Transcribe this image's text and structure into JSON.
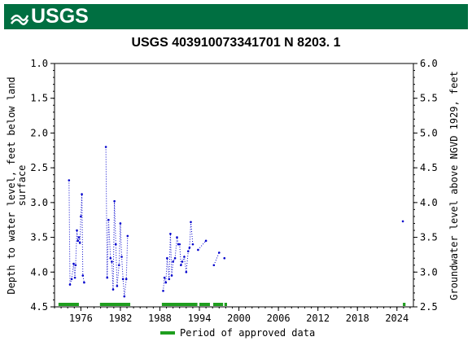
{
  "header": {
    "logo_text": "USGS"
  },
  "chart_data": {
    "type": "scatter",
    "title": "USGS 403910073341701 N  8203. 1",
    "ylabel_left_line1": "Depth to water level, feet below land",
    "ylabel_left_line2": "surface",
    "ylabel_right": "Groundwater level above NGVD 1929, feet",
    "y_left_lim": [
      1.0,
      4.5
    ],
    "y_left_inverted": true,
    "y_left_ticks": [
      "1.0",
      "1.5",
      "2.0",
      "2.5",
      "3.0",
      "3.5",
      "4.0",
      "4.5"
    ],
    "y_right_lim": [
      2.5,
      6.0
    ],
    "y_right_ticks": [
      "6.0",
      "5.5",
      "5.0",
      "4.5",
      "4.0",
      "3.5",
      "3.0",
      "2.5"
    ],
    "x_lim": [
      1972.0,
      2026.5
    ],
    "x_ticks": [
      "1976",
      "1982",
      "1988",
      "1994",
      "2000",
      "2006",
      "2012",
      "2018",
      "2024"
    ],
    "series": [
      {
        "color": "#0000cc",
        "segments": [
          [
            [
              1974.2,
              2.68
            ],
            [
              1974.35,
              4.18
            ],
            [
              1974.6,
              4.1
            ],
            [
              1974.9,
              3.88
            ],
            [
              1975.1,
              4.08
            ],
            [
              1975.2,
              3.9
            ],
            [
              1975.4,
              3.4
            ],
            [
              1975.55,
              3.55
            ],
            [
              1975.7,
              3.5
            ],
            [
              1975.85,
              3.58
            ],
            [
              1976.0,
              3.2
            ],
            [
              1976.15,
              2.88
            ],
            [
              1976.3,
              4.05
            ],
            [
              1976.5,
              4.15
            ]
          ],
          [
            [
              1979.8,
              2.2
            ],
            [
              1980.0,
              4.08
            ],
            [
              1980.2,
              3.25
            ],
            [
              1980.5,
              3.8
            ],
            [
              1980.7,
              3.85
            ],
            [
              1980.9,
              4.25
            ],
            [
              1981.1,
              2.98
            ],
            [
              1981.3,
              3.6
            ],
            [
              1981.5,
              4.2
            ],
            [
              1981.8,
              3.9
            ],
            [
              1982.0,
              3.3
            ],
            [
              1982.2,
              3.78
            ],
            [
              1982.4,
              4.1
            ],
            [
              1982.6,
              4.35
            ],
            [
              1982.9,
              4.1
            ],
            [
              1983.1,
              3.48
            ]
          ],
          [
            [
              1988.5,
              4.27
            ],
            [
              1988.7,
              4.08
            ],
            [
              1988.9,
              4.15
            ],
            [
              1989.1,
              3.8
            ],
            [
              1989.4,
              4.1
            ],
            [
              1989.6,
              3.45
            ],
            [
              1989.8,
              4.05
            ],
            [
              1990.0,
              3.85
            ],
            [
              1990.3,
              3.8
            ],
            [
              1990.6,
              3.5
            ],
            [
              1990.8,
              3.6
            ],
            [
              1991.0,
              3.6
            ],
            [
              1991.2,
              3.9
            ],
            [
              1991.4,
              3.85
            ],
            [
              1991.7,
              3.78
            ],
            [
              1992.0,
              4.0
            ],
            [
              1992.3,
              3.7
            ],
            [
              1992.5,
              3.65
            ],
            [
              1992.7,
              3.28
            ],
            [
              1993.0,
              3.6
            ]
          ],
          [
            [
              1993.8,
              3.68
            ],
            [
              1995.0,
              3.55
            ]
          ],
          [
            [
              1996.2,
              3.9
            ],
            [
              1997.0,
              3.72
            ]
          ],
          [
            [
              1997.8,
              3.8
            ]
          ],
          [
            [
              2024.9,
              3.27
            ]
          ]
        ]
      }
    ],
    "approved_periods": [
      [
        1972.6,
        1975.7
      ],
      [
        1978.9,
        1983.5
      ],
      [
        1988.3,
        1993.7
      ],
      [
        1994.0,
        1995.6
      ],
      [
        1996.1,
        1997.6
      ],
      [
        1997.8,
        1998.2
      ],
      [
        2024.9,
        2025.3
      ]
    ],
    "approved_color": "#1f9e1f",
    "legend_label": "Period of approved data",
    "legend_placement": "bottom-center"
  }
}
